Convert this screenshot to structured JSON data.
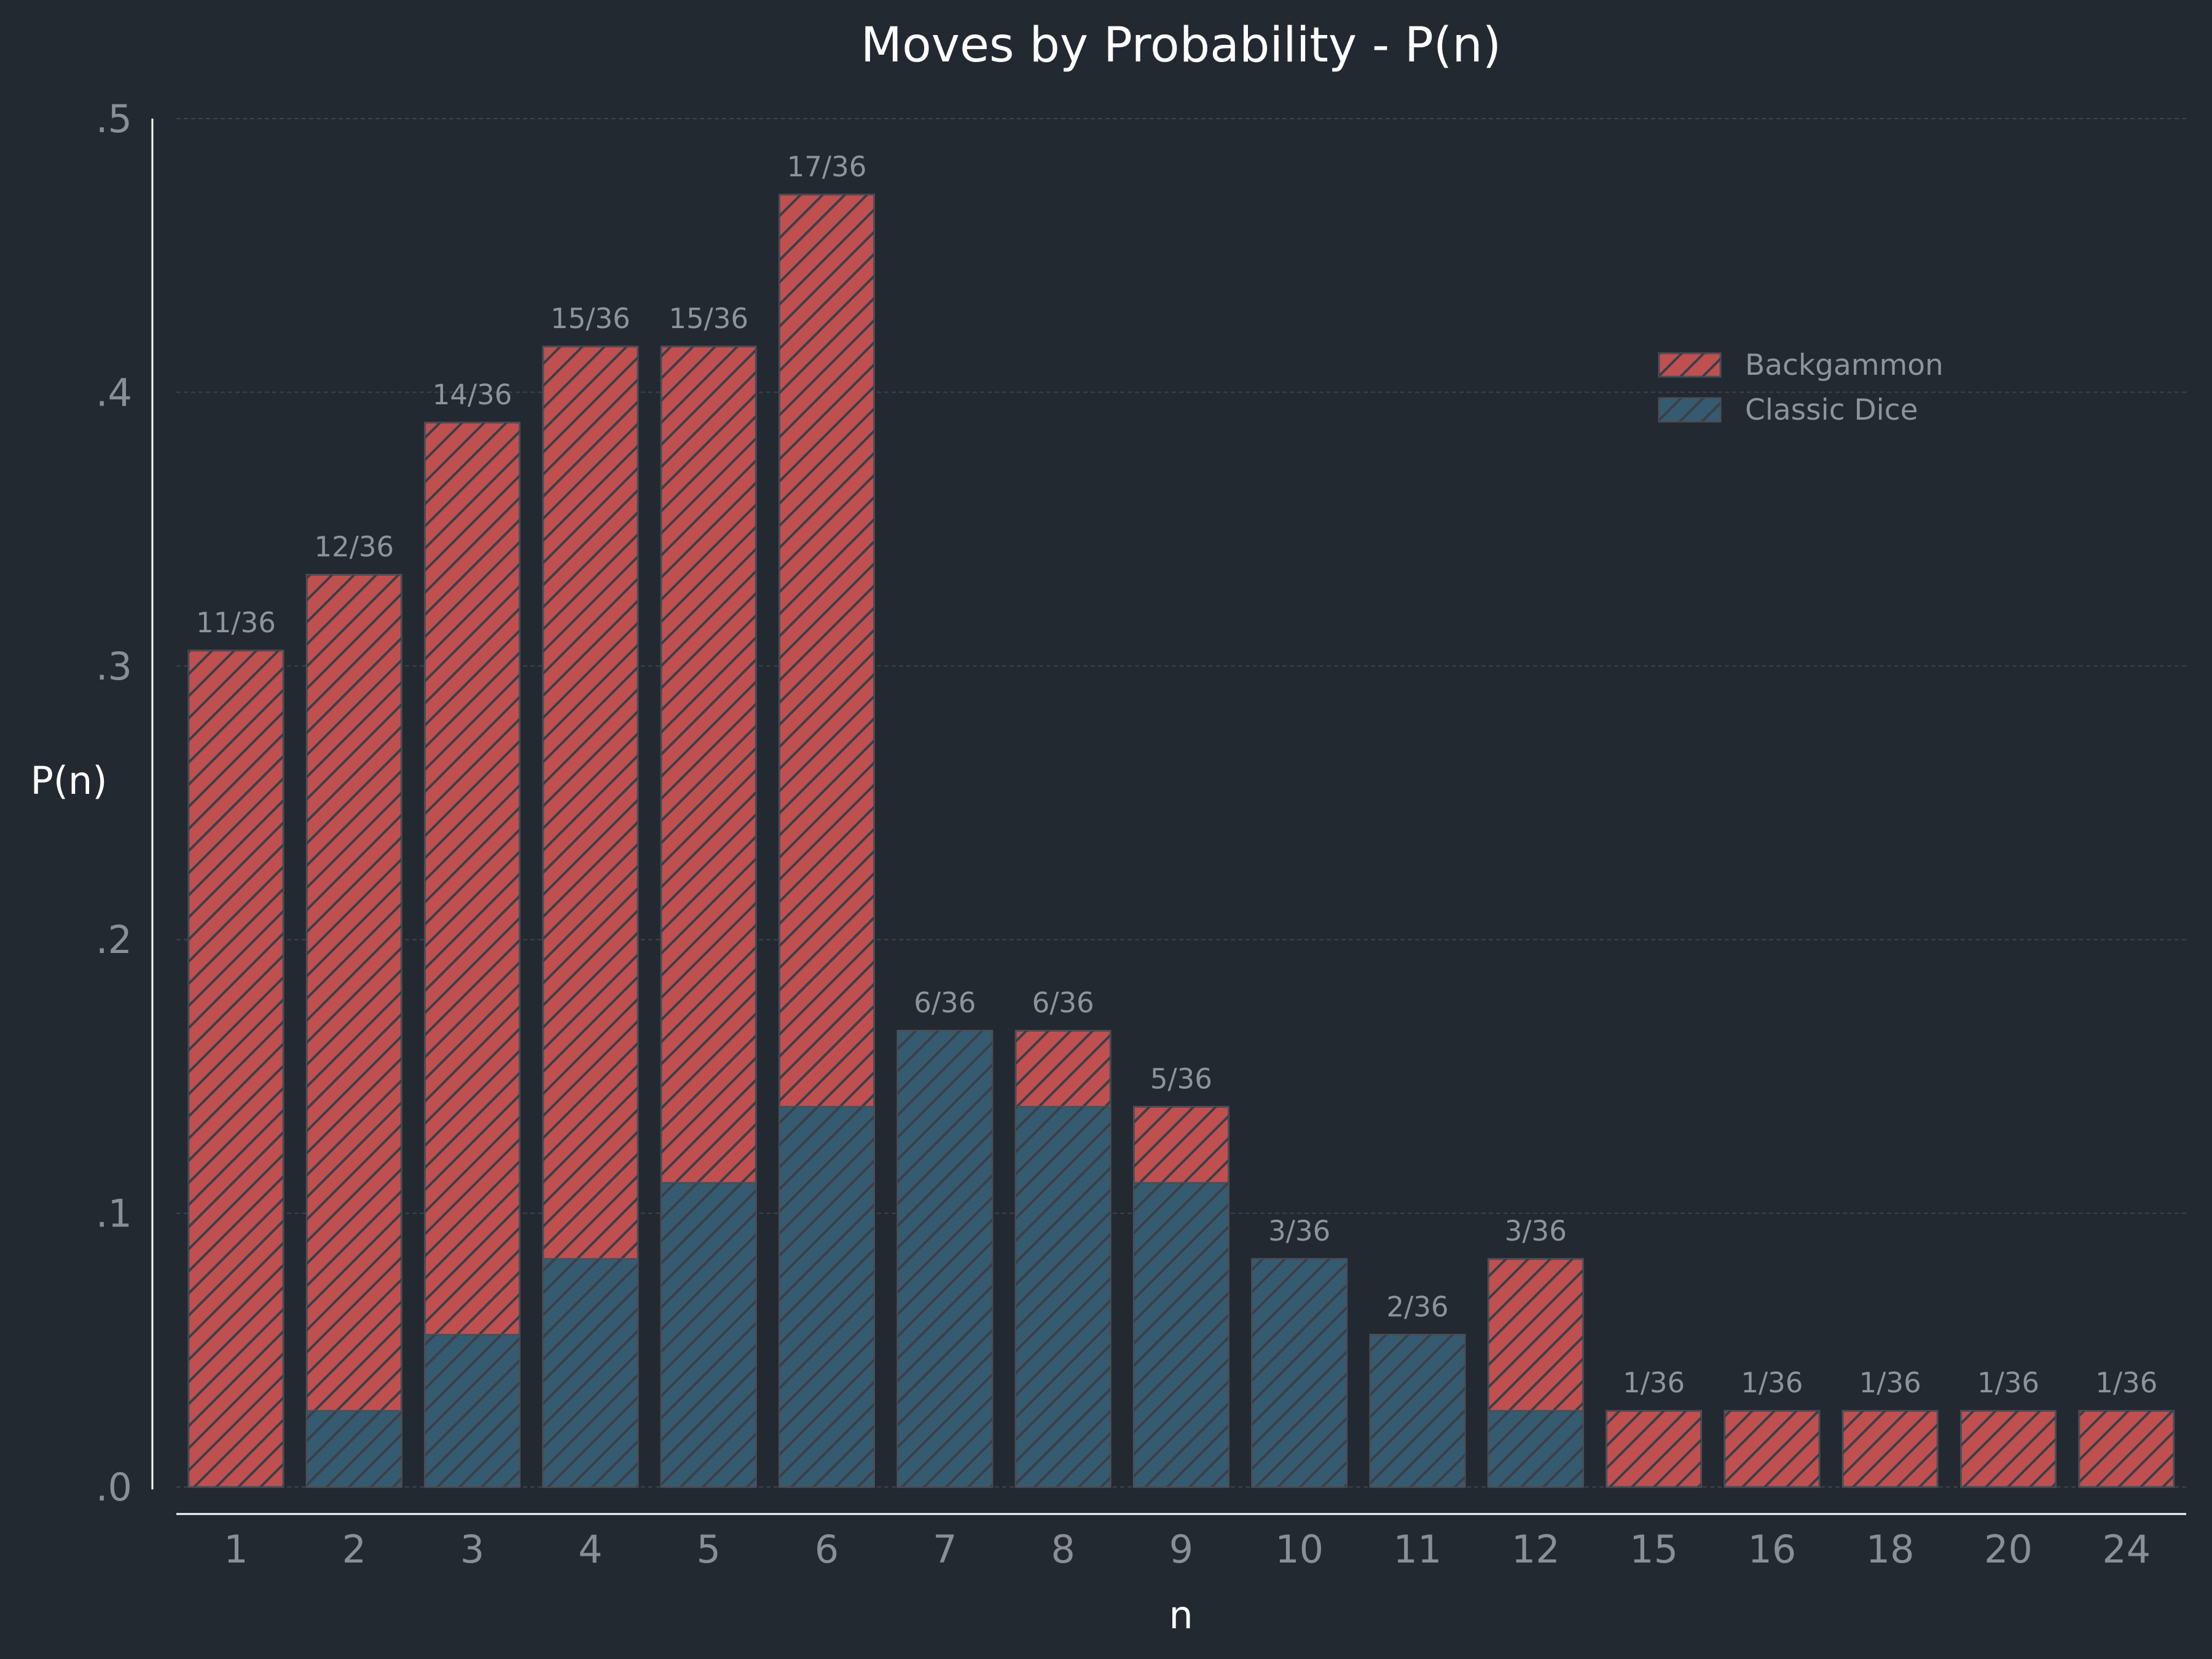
{
  "chart_data": {
    "type": "bar",
    "title": "Moves by Probability - P(n)",
    "xlabel": "n",
    "ylabel": "P(n)",
    "ylim": [
      0,
      0.5
    ],
    "yticks": [
      {
        "value": 0.0,
        "label": ".0"
      },
      {
        "value": 0.1,
        "label": ".1"
      },
      {
        "value": 0.2,
        "label": ".2"
      },
      {
        "value": 0.3,
        "label": ".3"
      },
      {
        "value": 0.4,
        "label": ".4"
      },
      {
        "value": 0.5,
        "label": ".5"
      }
    ],
    "categories": [
      "1",
      "2",
      "3",
      "4",
      "5",
      "6",
      "7",
      "8",
      "9",
      "10",
      "11",
      "12",
      "15",
      "16",
      "18",
      "20",
      "24"
    ],
    "series": [
      {
        "name": "Backgammon",
        "color": "#c0504f",
        "values": [
          0.3056,
          0.3333,
          0.3889,
          0.4167,
          0.4167,
          0.4722,
          0,
          0.1667,
          0.1389,
          0,
          0,
          0.0833,
          0.0278,
          0.0278,
          0.0278,
          0.0278,
          0.0278
        ]
      },
      {
        "name": "Classic Dice",
        "color": "#355b70",
        "values": [
          0,
          0.0278,
          0.0556,
          0.0833,
          0.1111,
          0.1389,
          0.1667,
          0.1389,
          0.1111,
          0.0833,
          0.0556,
          0.0278,
          0,
          0,
          0,
          0,
          0
        ]
      }
    ],
    "data_labels": [
      "11/36",
      "12/36",
      "14/36",
      "15/36",
      "15/36",
      "17/36",
      "6/36",
      "6/36",
      "5/36",
      "3/36",
      "2/36",
      "3/36",
      "1/36",
      "1/36",
      "1/36",
      "1/36",
      "1/36"
    ],
    "grid": "horizontal-dashed",
    "legend_position": "upper-right",
    "hatch": "diagonal"
  }
}
